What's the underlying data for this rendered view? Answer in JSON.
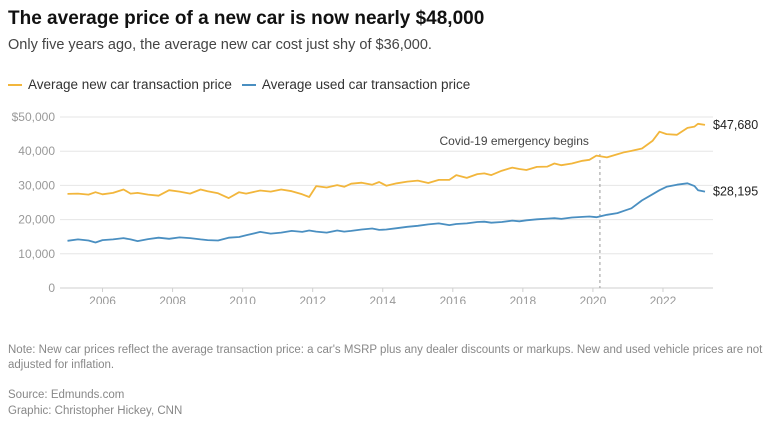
{
  "header": {
    "title": "The average price of a new car is now nearly $48,000",
    "subtitle": "Only five years ago, the average new car cost just shy of $36,000."
  },
  "legend": {
    "new_label": "Average new car transaction price",
    "used_label": "Average used car transaction price"
  },
  "footer": {
    "note": "Note: New car prices reflect the average transaction price: a car's MSRP plus any dealer discounts or markups. New and used vehicle prices are not adjusted for inflation.",
    "source": "Source: Edmunds.com",
    "credit": "Graphic: Christopher Hickey, CNN"
  },
  "colors": {
    "new": "#f2b63c",
    "used": "#4a8fc1",
    "grid": "#e6e6e6",
    "axis_text": "#999999",
    "annotation_line": "#999999"
  },
  "chart_data": {
    "type": "line",
    "title": "",
    "xlabel": "",
    "ylabel": "",
    "xlim": [
      2004.9,
      2023.2
    ],
    "ylim": [
      0,
      50000
    ],
    "grid": true,
    "legend_position": "top-left",
    "x_ticks": [
      "2006",
      "2008",
      "2010",
      "2012",
      "2014",
      "2016",
      "2018",
      "2020",
      "2022"
    ],
    "y_ticks": [
      "0",
      "10,000",
      "20,000",
      "30,000",
      "40,000",
      "$50,000"
    ],
    "annotation": {
      "x": 2020.2,
      "label": "Covid-19 emergency begins"
    },
    "series": [
      {
        "name": "Average new car transaction price",
        "end_label": "$47,680",
        "points": [
          [
            2005.0,
            27500
          ],
          [
            2005.3,
            27600
          ],
          [
            2005.6,
            27300
          ],
          [
            2005.8,
            28000
          ],
          [
            2006.0,
            27400
          ],
          [
            2006.3,
            27800
          ],
          [
            2006.6,
            28800
          ],
          [
            2006.8,
            27600
          ],
          [
            2007.0,
            27800
          ],
          [
            2007.3,
            27300
          ],
          [
            2007.6,
            27000
          ],
          [
            2007.9,
            28600
          ],
          [
            2008.2,
            28200
          ],
          [
            2008.5,
            27600
          ],
          [
            2008.8,
            28800
          ],
          [
            2009.0,
            28300
          ],
          [
            2009.3,
            27700
          ],
          [
            2009.6,
            26300
          ],
          [
            2009.9,
            28000
          ],
          [
            2010.1,
            27600
          ],
          [
            2010.5,
            28500
          ],
          [
            2010.8,
            28200
          ],
          [
            2011.1,
            28800
          ],
          [
            2011.4,
            28300
          ],
          [
            2011.7,
            27400
          ],
          [
            2011.9,
            26600
          ],
          [
            2012.1,
            29800
          ],
          [
            2012.4,
            29400
          ],
          [
            2012.7,
            30100
          ],
          [
            2012.9,
            29600
          ],
          [
            2013.1,
            30500
          ],
          [
            2013.4,
            30800
          ],
          [
            2013.7,
            30200
          ],
          [
            2013.9,
            31000
          ],
          [
            2014.1,
            29900
          ],
          [
            2014.4,
            30600
          ],
          [
            2014.7,
            31100
          ],
          [
            2015.0,
            31400
          ],
          [
            2015.3,
            30700
          ],
          [
            2015.6,
            31600
          ],
          [
            2015.9,
            31600
          ],
          [
            2016.1,
            33000
          ],
          [
            2016.4,
            32200
          ],
          [
            2016.7,
            33300
          ],
          [
            2016.9,
            33500
          ],
          [
            2017.1,
            33000
          ],
          [
            2017.4,
            34300
          ],
          [
            2017.7,
            35200
          ],
          [
            2017.9,
            34800
          ],
          [
            2018.1,
            34500
          ],
          [
            2018.4,
            35400
          ],
          [
            2018.7,
            35500
          ],
          [
            2018.9,
            36400
          ],
          [
            2019.1,
            35900
          ],
          [
            2019.4,
            36400
          ],
          [
            2019.7,
            37200
          ],
          [
            2019.9,
            37500
          ],
          [
            2020.1,
            38700
          ],
          [
            2020.4,
            38200
          ],
          [
            2020.7,
            39100
          ],
          [
            2020.9,
            39700
          ],
          [
            2021.1,
            40100
          ],
          [
            2021.4,
            40800
          ],
          [
            2021.7,
            43000
          ],
          [
            2021.9,
            45700
          ],
          [
            2022.1,
            45000
          ],
          [
            2022.4,
            44800
          ],
          [
            2022.7,
            46800
          ],
          [
            2022.9,
            47200
          ],
          [
            2023.0,
            48000
          ],
          [
            2023.2,
            47680
          ]
        ]
      },
      {
        "name": "Average used car transaction price",
        "end_label": "$28,195",
        "points": [
          [
            2005.0,
            13800
          ],
          [
            2005.3,
            14200
          ],
          [
            2005.6,
            13900
          ],
          [
            2005.8,
            13300
          ],
          [
            2006.0,
            14000
          ],
          [
            2006.3,
            14200
          ],
          [
            2006.6,
            14600
          ],
          [
            2006.8,
            14200
          ],
          [
            2007.0,
            13700
          ],
          [
            2007.3,
            14300
          ],
          [
            2007.6,
            14700
          ],
          [
            2007.9,
            14400
          ],
          [
            2008.2,
            14800
          ],
          [
            2008.5,
            14600
          ],
          [
            2008.8,
            14200
          ],
          [
            2009.0,
            14000
          ],
          [
            2009.3,
            13900
          ],
          [
            2009.6,
            14700
          ],
          [
            2009.9,
            14900
          ],
          [
            2010.1,
            15400
          ],
          [
            2010.5,
            16400
          ],
          [
            2010.8,
            15900
          ],
          [
            2011.1,
            16200
          ],
          [
            2011.4,
            16700
          ],
          [
            2011.7,
            16400
          ],
          [
            2011.9,
            16800
          ],
          [
            2012.1,
            16500
          ],
          [
            2012.4,
            16200
          ],
          [
            2012.7,
            16800
          ],
          [
            2012.9,
            16500
          ],
          [
            2013.1,
            16700
          ],
          [
            2013.4,
            17100
          ],
          [
            2013.7,
            17400
          ],
          [
            2013.9,
            17000
          ],
          [
            2014.1,
            17100
          ],
          [
            2014.4,
            17500
          ],
          [
            2014.7,
            17900
          ],
          [
            2015.0,
            18200
          ],
          [
            2015.3,
            18600
          ],
          [
            2015.6,
            18900
          ],
          [
            2015.9,
            18400
          ],
          [
            2016.1,
            18700
          ],
          [
            2016.4,
            18900
          ],
          [
            2016.7,
            19300
          ],
          [
            2016.9,
            19400
          ],
          [
            2017.1,
            19100
          ],
          [
            2017.4,
            19300
          ],
          [
            2017.7,
            19700
          ],
          [
            2017.9,
            19500
          ],
          [
            2018.1,
            19800
          ],
          [
            2018.4,
            20100
          ],
          [
            2018.7,
            20300
          ],
          [
            2018.9,
            20400
          ],
          [
            2019.1,
            20200
          ],
          [
            2019.4,
            20600
          ],
          [
            2019.7,
            20800
          ],
          [
            2019.9,
            20900
          ],
          [
            2020.1,
            20700
          ],
          [
            2020.4,
            21400
          ],
          [
            2020.7,
            21900
          ],
          [
            2020.9,
            22600
          ],
          [
            2021.1,
            23300
          ],
          [
            2021.4,
            25600
          ],
          [
            2021.7,
            27400
          ],
          [
            2021.9,
            28600
          ],
          [
            2022.1,
            29600
          ],
          [
            2022.4,
            30200
          ],
          [
            2022.7,
            30600
          ],
          [
            2022.9,
            29800
          ],
          [
            2023.0,
            28600
          ],
          [
            2023.2,
            28195
          ]
        ]
      }
    ]
  }
}
